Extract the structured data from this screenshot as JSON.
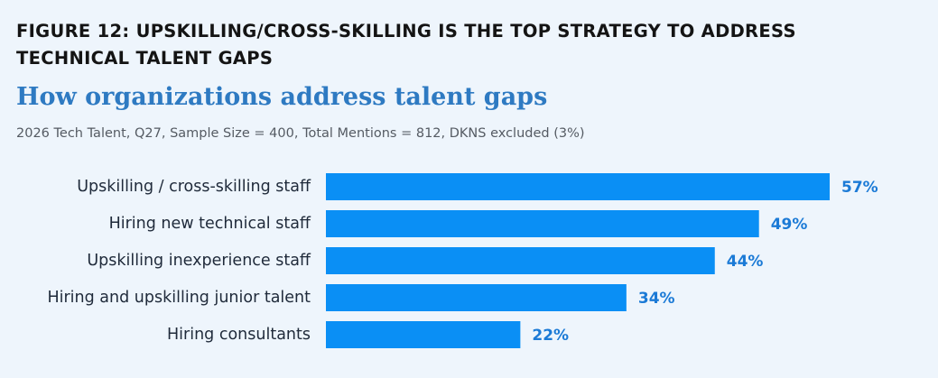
{
  "figure": {
    "label": "FIGURE 12: UPSKILLING/CROSS-SKILLING IS THE TOP STRATEGY TO ADDRESS TECHNICAL TALENT GAPS"
  },
  "chart_data": {
    "type": "bar",
    "orientation": "horizontal",
    "title": "How organizations address talent gaps",
    "subtitle": "2026 Tech Talent, Q27, Sample Size = 400, Total Mentions = 812, DKNS excluded (3%)",
    "categories": [
      "Upskilling / cross-skilling staff",
      "Hiring new technical staff",
      "Upskilling inexperience staff",
      "Hiring and upskilling junior talent",
      "Hiring consultants"
    ],
    "values": [
      57,
      49,
      44,
      34,
      22
    ],
    "value_labels": [
      "57%",
      "49%",
      "44%",
      "34%",
      "22%"
    ],
    "unit": "%",
    "xlim": [
      0,
      100
    ],
    "grid": false,
    "legend": "none",
    "colors": {
      "bar": "#0a8ff5",
      "value_label": "#1b7ad6",
      "title": "#2e7ac2",
      "background": "#eef5fc"
    }
  }
}
